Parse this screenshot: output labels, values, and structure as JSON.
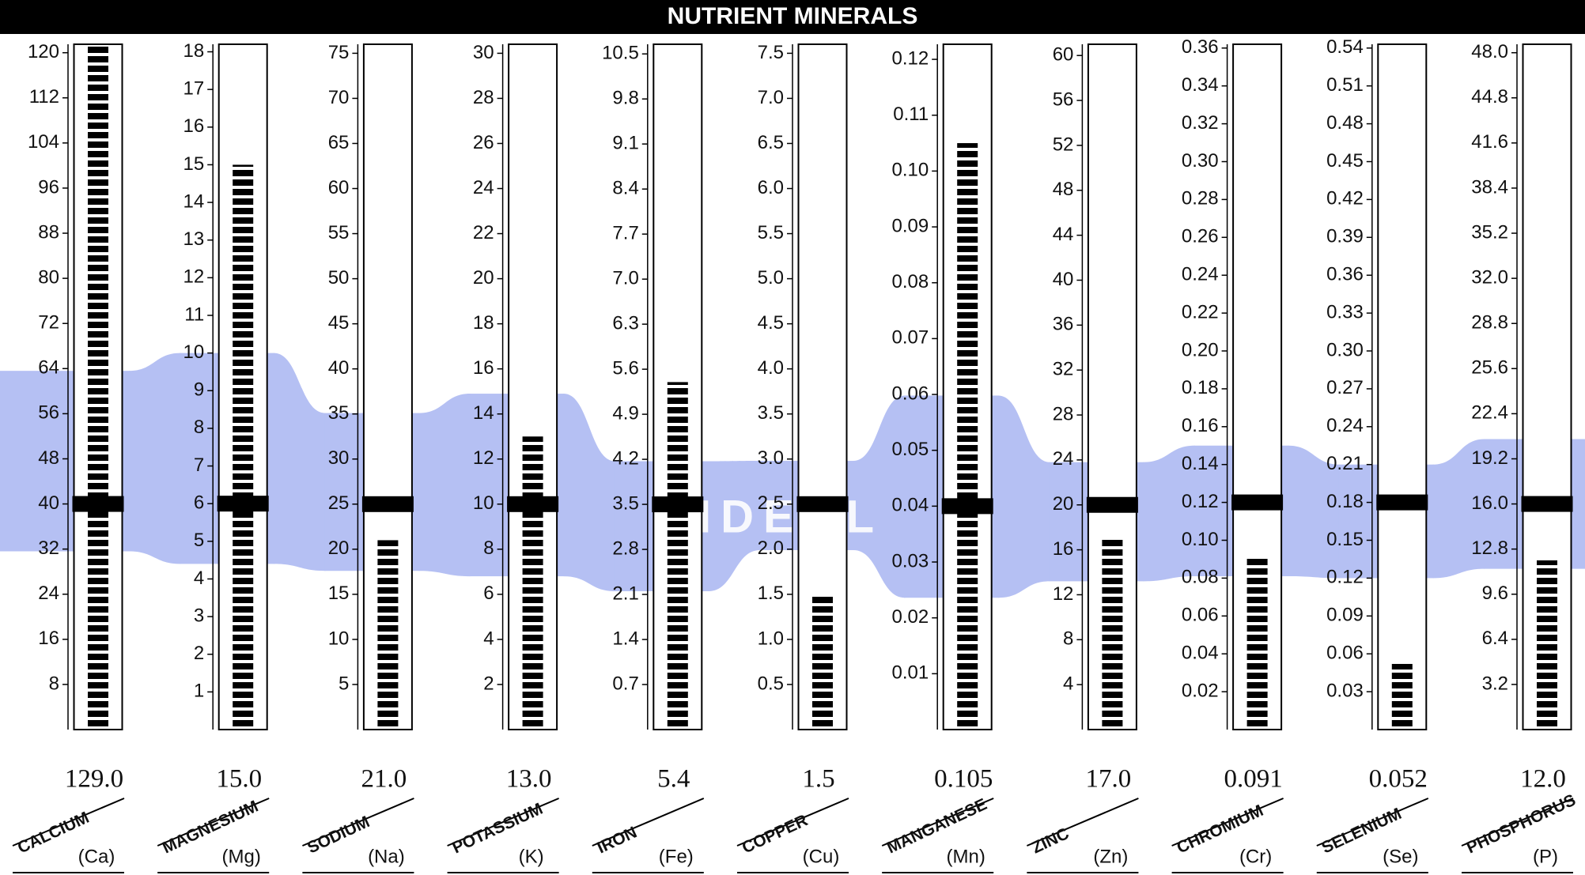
{
  "title": "NUTRIENT MINERALS",
  "band_label": "IDEAL",
  "chart_data": [
    {
      "type": "bar",
      "title": "CALCIUM",
      "symbol": "(Ca)",
      "values": [
        129
      ],
      "value_labels": [
        "129.0"
      ],
      "ideal": 40,
      "ideal_range": [
        31.6,
        63.6
      ],
      "ylim": [
        0,
        121.5
      ],
      "yticks": [
        8,
        16,
        24,
        32,
        40,
        48,
        56,
        64,
        72,
        80,
        88,
        96,
        104,
        112,
        120
      ]
    },
    {
      "type": "bar",
      "title": "MAGNESIUM",
      "symbol": "(Mg)",
      "values": [
        15
      ],
      "value_labels": [
        "15.0"
      ],
      "ideal": 6,
      "ideal_range": [
        4.4,
        10
      ],
      "ylim": [
        0,
        18.2
      ],
      "yticks": [
        1,
        2,
        3,
        4,
        5,
        6,
        7,
        8,
        9,
        10,
        11,
        12,
        13,
        14,
        15,
        16,
        17,
        18
      ]
    },
    {
      "type": "bar",
      "title": "SODIUM",
      "symbol": "(Na)",
      "values": [
        21
      ],
      "value_labels": [
        "21.0"
      ],
      "ideal": 25,
      "ideal_range": [
        17.6,
        35.1
      ],
      "ylim": [
        0,
        76
      ],
      "yticks": [
        5,
        10,
        15,
        20,
        25,
        30,
        35,
        40,
        45,
        50,
        55,
        60,
        65,
        70,
        75
      ]
    },
    {
      "type": "bar",
      "title": "POTASSIUM",
      "symbol": "(K)",
      "values": [
        13
      ],
      "value_labels": [
        "13.0"
      ],
      "ideal": 10,
      "ideal_range": [
        6.8,
        14.9
      ],
      "ylim": [
        0,
        30.4
      ],
      "yticks": [
        2,
        4,
        6,
        8,
        10,
        12,
        14,
        16,
        18,
        20,
        22,
        24,
        26,
        28,
        30
      ]
    },
    {
      "type": "bar",
      "title": "IRON",
      "symbol": "(Fe)",
      "values": [
        5.4
      ],
      "ideal": 3.5,
      "ideal_range": [
        2.15,
        4.17
      ],
      "ylim": [
        0,
        10.65
      ],
      "yticks": [
        0.7,
        1.4,
        2.1,
        2.8,
        3.5,
        4.2,
        4.9,
        5.6,
        6.3,
        {
          "value": 7,
          "label": "7.0"
        },
        7.7,
        8.4,
        9.1,
        9.8,
        10.5
      ]
    },
    {
      "type": "bar",
      "title": "COPPER",
      "symbol": "(Cu)",
      "values": [
        1.5
      ],
      "ideal": 2.5,
      "ideal_range": [
        1.99,
        2.98
      ],
      "ylim": [
        0,
        7.6
      ],
      "yticks": [
        0.5,
        {
          "value": 1,
          "label": "1.0"
        },
        1.5,
        {
          "value": 2,
          "label": "2.0"
        },
        2.5,
        {
          "value": 3,
          "label": "3.0"
        },
        3.5,
        {
          "value": 4,
          "label": "4.0"
        },
        4.5,
        {
          "value": 5,
          "label": "5.0"
        },
        5.5,
        {
          "value": 6,
          "label": "6.0"
        },
        6.5,
        {
          "value": 7,
          "label": "7.0"
        },
        7.5
      ]
    },
    {
      "type": "bar",
      "title": "MANGANESE",
      "symbol": "(Mn)",
      "values": [
        0.105
      ],
      "ideal": 0.04,
      "ideal_range": [
        0.0236,
        0.0598
      ],
      "ylim": [
        0,
        0.1227
      ],
      "yticks": [
        0.01,
        0.02,
        0.03,
        0.04,
        0.05,
        0.06,
        0.07,
        0.08,
        0.09,
        {
          "value": 0.1,
          "label": "0.10"
        },
        0.11,
        0.12
      ]
    },
    {
      "type": "bar",
      "title": "ZINC",
      "symbol": "(Zn)",
      "values": [
        17
      ],
      "value_labels": [
        "17.0"
      ],
      "ideal": 20,
      "ideal_range": [
        13.2,
        23.8
      ],
      "ylim": [
        0,
        61
      ],
      "yticks": [
        4,
        8,
        12,
        16,
        20,
        24,
        28,
        32,
        36,
        40,
        44,
        48,
        52,
        56,
        60
      ]
    },
    {
      "type": "bar",
      "title": "CHROMIUM",
      "symbol": "(Cr)",
      "values": [
        0.091
      ],
      "ideal": 0.12,
      "ideal_range": [
        0.081,
        0.15
      ],
      "ylim": [
        0,
        0.362
      ],
      "yticks": [
        0.02,
        0.04,
        0.06,
        0.08,
        {
          "value": 0.1,
          "label": "0.10"
        },
        0.12,
        0.14,
        0.16,
        0.18,
        {
          "value": 0.2,
          "label": "0.20"
        },
        0.22,
        0.24,
        0.26,
        0.28,
        {
          "value": 0.3,
          "label": "0.30"
        },
        0.32,
        0.34,
        0.36
      ]
    },
    {
      "type": "bar",
      "title": "SELENIUM",
      "symbol": "(Se)",
      "values": [
        0.052
      ],
      "ideal": 0.18,
      "ideal_range": [
        0.12,
        0.21
      ],
      "ylim": [
        0,
        0.543
      ],
      "yticks": [
        0.03,
        0.06,
        0.09,
        0.12,
        0.15,
        0.18,
        0.21,
        0.24,
        0.27,
        {
          "value": 0.3,
          "label": "0.30"
        },
        0.33,
        0.36,
        0.39,
        0.42,
        0.45,
        0.48,
        0.51,
        0.54
      ]
    },
    {
      "type": "bar",
      "title": "PHOSPHORUS",
      "symbol": "(P)",
      "values": [
        12
      ],
      "value_labels": [
        "12.0"
      ],
      "ideal": 16,
      "ideal_range": [
        11.4,
        20.6
      ],
      "ylim": [
        0,
        48.6
      ],
      "yticks": [
        3.2,
        6.4,
        9.6,
        12.8,
        {
          "value": 16,
          "label": "16.0"
        },
        19.2,
        22.4,
        25.6,
        28.8,
        {
          "value": 32,
          "label": "32.0"
        },
        35.2,
        38.4,
        41.6,
        44.8,
        {
          "value": 48,
          "label": "48.0"
        }
      ]
    }
  ]
}
